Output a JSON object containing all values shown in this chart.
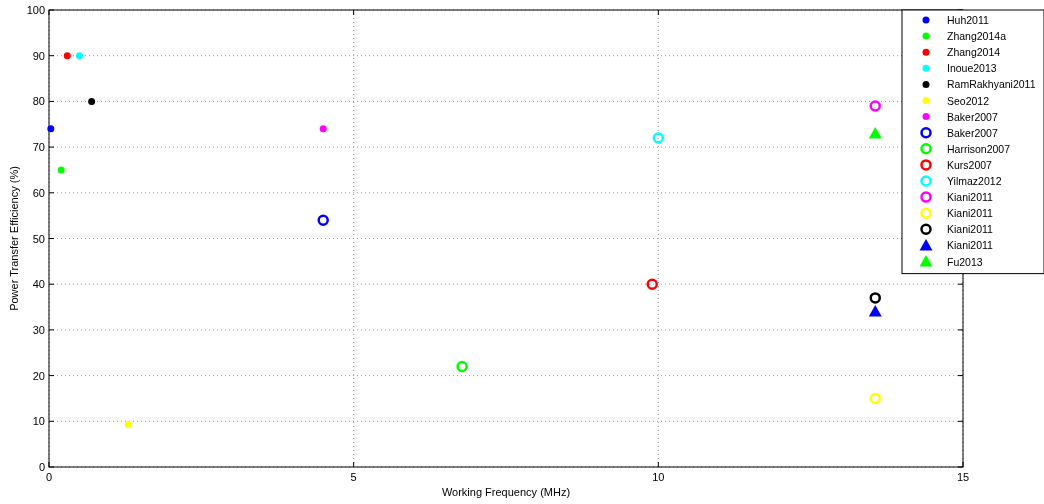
{
  "chart_data": {
    "type": "scatter",
    "xlabel": "Working Frequency (MHz)",
    "ylabel": "Power Transfer Efficiency (%)",
    "xlim": [
      0,
      15
    ],
    "xticks": [
      0,
      5,
      10,
      15
    ],
    "ylim": [
      0,
      100
    ],
    "yticks": [
      0,
      10,
      20,
      30,
      40,
      50,
      60,
      70,
      80,
      90,
      100
    ],
    "grid": true,
    "legend": "top right",
    "series": [
      {
        "name": "Huh2011",
        "color": "#0000ff",
        "marker": "circle",
        "x": [
          0.03
        ],
        "values": [
          74
        ]
      },
      {
        "name": "Zhang2014a",
        "color": "#00ff00",
        "marker": "circle",
        "x": [
          0.2
        ],
        "values": [
          65
        ]
      },
      {
        "name": "Zhang2014",
        "color": "#ff0000",
        "marker": "circle",
        "x": [
          0.3
        ],
        "values": [
          90
        ]
      },
      {
        "name": "Inoue2013",
        "color": "#00ffff",
        "marker": "circle",
        "x": [
          0.5
        ],
        "values": [
          90
        ]
      },
      {
        "name": "RamRakhyani2011",
        "color": "#000000",
        "marker": "circle",
        "x": [
          0.7
        ],
        "values": [
          80
        ]
      },
      {
        "name": "Seo2012",
        "color": "#ffff00",
        "marker": "circle",
        "x": [
          1.3
        ],
        "values": [
          9.3
        ]
      },
      {
        "name": "Baker2007",
        "color": "#ff00ff",
        "marker": "circle",
        "x": [
          4.5
        ],
        "values": [
          74
        ]
      },
      {
        "name": "Baker2007",
        "color": "#0000ff",
        "x": [
          4.5
        ],
        "values": [
          54
        ]
      },
      {
        "name": "Harrison2007",
        "color": "#00ff00",
        "x": [
          6.78
        ],
        "values": [
          22
        ]
      },
      {
        "name": "Kurs2007",
        "color": "#ff0000",
        "x": [
          9.9
        ],
        "values": [
          40
        ]
      },
      {
        "name": "Yilmaz2012",
        "color": "#00ffff",
        "x": [
          10
        ],
        "values": [
          72
        ]
      },
      {
        "name": "Kiani2011",
        "color": "#ff00ff",
        "x": [
          13.56
        ],
        "values": [
          79
        ]
      },
      {
        "name": "Kiani2011",
        "color": "#ffff00",
        "x": [
          13.56
        ],
        "values": [
          15
        ]
      },
      {
        "name": "Kiani2011",
        "color": "#000000",
        "x": [
          13.56
        ],
        "values": [
          37
        ]
      },
      {
        "name": "Kiani2011",
        "color": "#0000ff",
        "marker": "triangle",
        "x": [
          13.56
        ],
        "values": [
          34
        ]
      },
      {
        "name": "Fu2013",
        "color": "#00ff00",
        "marker": "triangle",
        "x": [
          13.56
        ],
        "values": [
          73
        ]
      }
    ]
  }
}
